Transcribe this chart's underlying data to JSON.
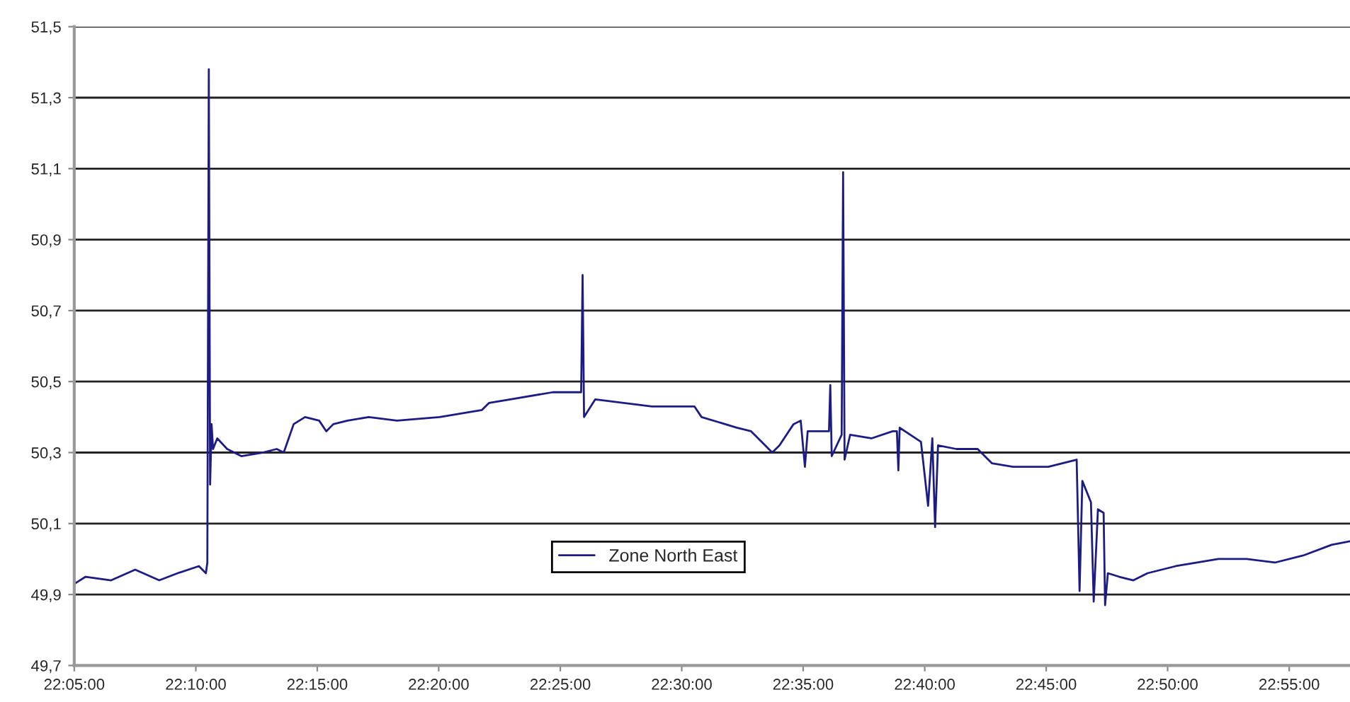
{
  "chart_data": {
    "type": "line",
    "x": [
      22.0833,
      22.0911,
      22.1086,
      22.1251,
      22.1416,
      22.1542,
      22.1688,
      22.1736,
      22.1746,
      22.1756,
      22.1765,
      22.1775,
      22.1785,
      22.1814,
      22.1882,
      22.1979,
      22.2125,
      22.2222,
      22.227,
      22.2338,
      22.2416,
      22.2513,
      22.2562,
      22.261,
      22.2708,
      22.2853,
      22.3047,
      22.3339,
      22.363,
      22.3679,
      22.3824,
      22.4116,
      22.431,
      22.432,
      22.433,
      22.4407,
      22.4601,
      22.4796,
      22.4893,
      22.5087,
      22.5136,
      22.5378,
      22.5476,
      22.5573,
      22.5621,
      22.567,
      22.5767,
      22.5816,
      22.5845,
      22.5864,
      22.601,
      22.6019,
      22.6029,
      22.6097,
      22.6107,
      22.6117,
      22.6155,
      22.6301,
      22.6447,
      22.6476,
      22.6486,
      22.6495,
      22.6641,
      22.669,
      22.6719,
      22.6738,
      22.6758,
      22.6884,
      22.703,
      22.7127,
      22.7272,
      22.7515,
      22.7709,
      22.7729,
      22.7748,
      22.7807,
      22.7826,
      22.7855,
      22.7894,
      22.7904,
      22.7923,
      22.8001,
      22.8098,
      22.8195,
      22.8389,
      22.8681,
      22.8875,
      22.9069,
      22.9263,
      22.9458,
      22.9584
    ],
    "series": [
      {
        "name": "Zone North East",
        "color": "#1c1c84",
        "values": [
          49.93,
          49.95,
          49.94,
          49.97,
          49.94,
          49.96,
          49.98,
          49.96,
          49.99,
          51.38,
          50.21,
          50.38,
          50.31,
          50.34,
          50.31,
          50.29,
          50.3,
          50.31,
          50.3,
          50.38,
          50.4,
          50.39,
          50.36,
          50.38,
          50.39,
          50.4,
          50.39,
          50.4,
          50.42,
          50.44,
          50.45,
          50.47,
          50.47,
          50.8,
          50.4,
          50.45,
          50.44,
          50.43,
          50.43,
          50.43,
          50.4,
          50.37,
          50.36,
          50.32,
          50.3,
          50.32,
          50.38,
          50.39,
          50.26,
          50.36,
          50.36,
          50.49,
          50.29,
          50.35,
          51.09,
          50.28,
          50.35,
          50.34,
          50.36,
          50.36,
          50.25,
          50.37,
          50.33,
          50.15,
          50.34,
          50.09,
          50.32,
          50.31,
          50.31,
          50.27,
          50.26,
          50.26,
          50.28,
          49.91,
          50.22,
          50.16,
          49.88,
          50.14,
          50.13,
          49.87,
          49.96,
          49.95,
          49.94,
          49.96,
          49.98,
          50.0,
          50.0,
          49.99,
          50.01,
          50.04,
          50.05
        ]
      }
    ],
    "xlim": [
      22.0833,
      22.9584
    ],
    "xticks": [
      {
        "value": 22.0833,
        "label": "22:05:00"
      },
      {
        "value": 22.1667,
        "label": "22:10:00"
      },
      {
        "value": 22.25,
        "label": "22:15:00"
      },
      {
        "value": 22.3333,
        "label": "22:20:00"
      },
      {
        "value": 22.4167,
        "label": "22:25:00"
      },
      {
        "value": 22.5,
        "label": "22:30:00"
      },
      {
        "value": 22.5833,
        "label": "22:35:00"
      },
      {
        "value": 22.6667,
        "label": "22:40:00"
      },
      {
        "value": 22.75,
        "label": "22:45:00"
      },
      {
        "value": 22.8333,
        "label": "22:50:00"
      },
      {
        "value": 22.9167,
        "label": "22:55:00"
      }
    ],
    "ylim": [
      49.7,
      51.5
    ],
    "yticks": [
      {
        "value": 49.7,
        "label": "49,7"
      },
      {
        "value": 49.9,
        "label": "49,9"
      },
      {
        "value": 50.1,
        "label": "50,1"
      },
      {
        "value": 50.3,
        "label": "50,3"
      },
      {
        "value": 50.5,
        "label": "50,5"
      },
      {
        "value": 50.7,
        "label": "50,7"
      },
      {
        "value": 50.9,
        "label": "50,9"
      },
      {
        "value": 51.1,
        "label": "51,1"
      },
      {
        "value": 51.3,
        "label": "51,3"
      },
      {
        "value": 51.5,
        "label": "51,5"
      }
    ],
    "grid": "y",
    "legend": "bottom",
    "marker": "none",
    "line_style": "solid"
  }
}
